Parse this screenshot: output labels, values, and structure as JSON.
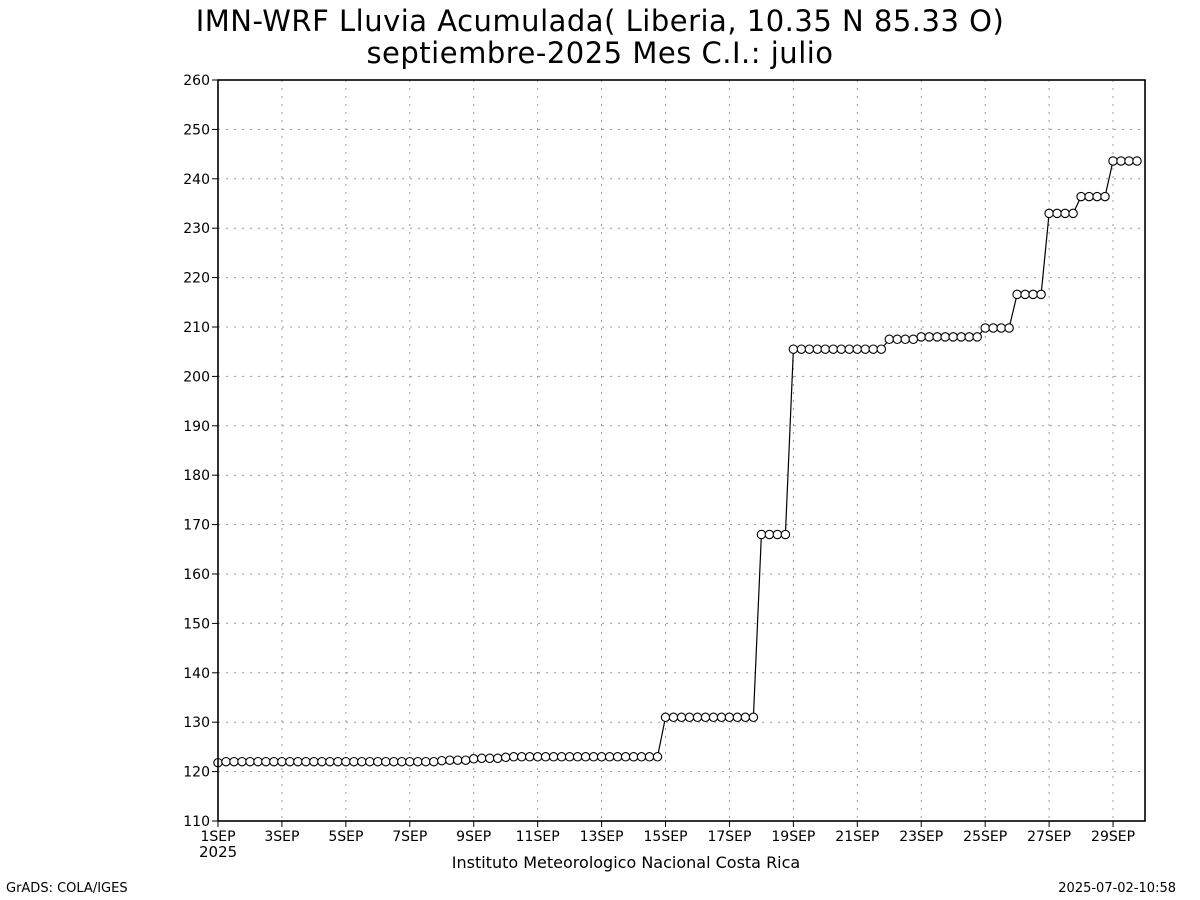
{
  "chart_data": {
    "type": "line",
    "title": "IMN-WRF  Lluvia Acumulada( Liberia, 10.35  N 85.33  O)",
    "subtitle": "septiembre-2025 Mes C.I.: julio",
    "xlabel": "Instituto Meteorologico Nacional Costa Rica",
    "x_year_label": "2025",
    "ylabel": "",
    "ylim": [
      110,
      260
    ],
    "xlim": [
      1,
      30
    ],
    "yticks": [
      110,
      120,
      130,
      140,
      150,
      160,
      170,
      180,
      190,
      200,
      210,
      220,
      230,
      240,
      250,
      260
    ],
    "xticks": [
      {
        "day": 1,
        "label": "1SEP"
      },
      {
        "day": 3,
        "label": "3SEP"
      },
      {
        "day": 5,
        "label": "5SEP"
      },
      {
        "day": 7,
        "label": "7SEP"
      },
      {
        "day": 9,
        "label": "9SEP"
      },
      {
        "day": 11,
        "label": "11SEP"
      },
      {
        "day": 13,
        "label": "13SEP"
      },
      {
        "day": 15,
        "label": "15SEP"
      },
      {
        "day": 17,
        "label": "17SEP"
      },
      {
        "day": 19,
        "label": "19SEP"
      },
      {
        "day": 21,
        "label": "21SEP"
      },
      {
        "day": 23,
        "label": "23SEP"
      },
      {
        "day": 25,
        "label": "25SEP"
      },
      {
        "day": 27,
        "label": "27SEP"
      },
      {
        "day": 29,
        "label": "29SEP"
      }
    ],
    "grid": true,
    "marker": "open-circle",
    "line_color": "#000000",
    "x_step_days": 0.25,
    "x_start_day": 1,
    "series": [
      {
        "values": [
          121.8,
          122.0,
          122.0,
          122.0,
          122.0,
          122.0,
          122.0,
          122.0,
          122.0,
          122.0,
          122.0,
          122.0,
          122.0,
          122.0,
          122.0,
          122.0,
          122.0,
          122.0,
          122.0,
          122.0,
          122.0,
          122.0,
          122.0,
          122.0,
          122.0,
          122.0,
          122.0,
          122.0,
          122.2,
          122.3,
          122.3,
          122.3,
          122.6,
          122.7,
          122.7,
          122.7,
          122.9,
          123.0,
          123.0,
          123.0,
          123.0,
          123.0,
          123.0,
          123.0,
          123.0,
          123.0,
          123.0,
          123.0,
          123.0,
          123.0,
          123.0,
          123.0,
          123.0,
          123.0,
          123.0,
          123.0,
          131.0,
          131.0,
          131.0,
          131.0,
          131.0,
          131.0,
          131.0,
          131.0,
          131.0,
          131.0,
          131.0,
          131.0,
          168.0,
          168.0,
          168.0,
          168.0,
          205.5,
          205.5,
          205.5,
          205.5,
          205.5,
          205.5,
          205.5,
          205.5,
          205.5,
          205.5,
          205.5,
          205.5,
          207.5,
          207.5,
          207.5,
          207.5,
          208.0,
          208.0,
          208.0,
          208.0,
          208.0,
          208.0,
          208.0,
          208.0,
          209.8,
          209.8,
          209.8,
          209.8,
          216.6,
          216.6,
          216.6,
          216.6,
          233.0,
          233.0,
          233.0,
          233.0,
          236.4,
          236.4,
          236.4,
          236.4,
          243.6,
          243.6,
          243.6,
          243.6
        ]
      }
    ]
  },
  "footer": {
    "credit": "GrADS: COLA/IGES",
    "timestamp": "2025-07-02-10:58"
  }
}
